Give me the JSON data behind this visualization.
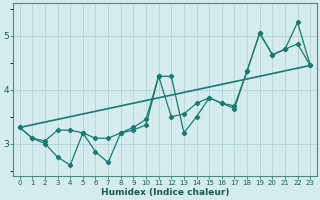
{
  "xlabel": "Humidex (Indice chaleur)",
  "ylabel": "",
  "bg_color": "#d4ecee",
  "grid_color": "#b8d8dc",
  "line_color": "#1a7a6e",
  "xlim": [
    -0.5,
    23.5
  ],
  "ylim": [
    2.4,
    5.6
  ],
  "yticks": [
    3,
    4,
    5
  ],
  "xticks": [
    0,
    1,
    2,
    3,
    4,
    5,
    6,
    7,
    8,
    9,
    10,
    11,
    12,
    13,
    14,
    15,
    16,
    17,
    18,
    19,
    20,
    21,
    22,
    23
  ],
  "series1_x": [
    0,
    1,
    2,
    3,
    4,
    5,
    6,
    7,
    8,
    9,
    10,
    11,
    12,
    13,
    14,
    15,
    16,
    17,
    18,
    19,
    20,
    21,
    22,
    23
  ],
  "series1_y": [
    3.3,
    3.1,
    3.0,
    2.75,
    2.6,
    3.2,
    2.85,
    2.65,
    3.2,
    3.25,
    3.35,
    4.25,
    4.25,
    3.2,
    3.5,
    3.85,
    3.75,
    3.65,
    4.35,
    5.05,
    4.65,
    4.75,
    5.25,
    4.45
  ],
  "series2_x": [
    0,
    1,
    2,
    3,
    4,
    5,
    6,
    7,
    8,
    9,
    10,
    11,
    12,
    13,
    14,
    15,
    16,
    17,
    18,
    19,
    20,
    21,
    22,
    23
  ],
  "series2_y": [
    3.3,
    3.1,
    3.05,
    3.25,
    3.25,
    3.2,
    3.1,
    3.1,
    3.2,
    3.3,
    3.45,
    4.25,
    3.5,
    3.55,
    3.75,
    3.85,
    3.75,
    3.7,
    4.35,
    5.05,
    4.65,
    4.75,
    4.85,
    4.45
  ],
  "trend_x": [
    0,
    23
  ],
  "trend_y": [
    3.3,
    4.45
  ]
}
